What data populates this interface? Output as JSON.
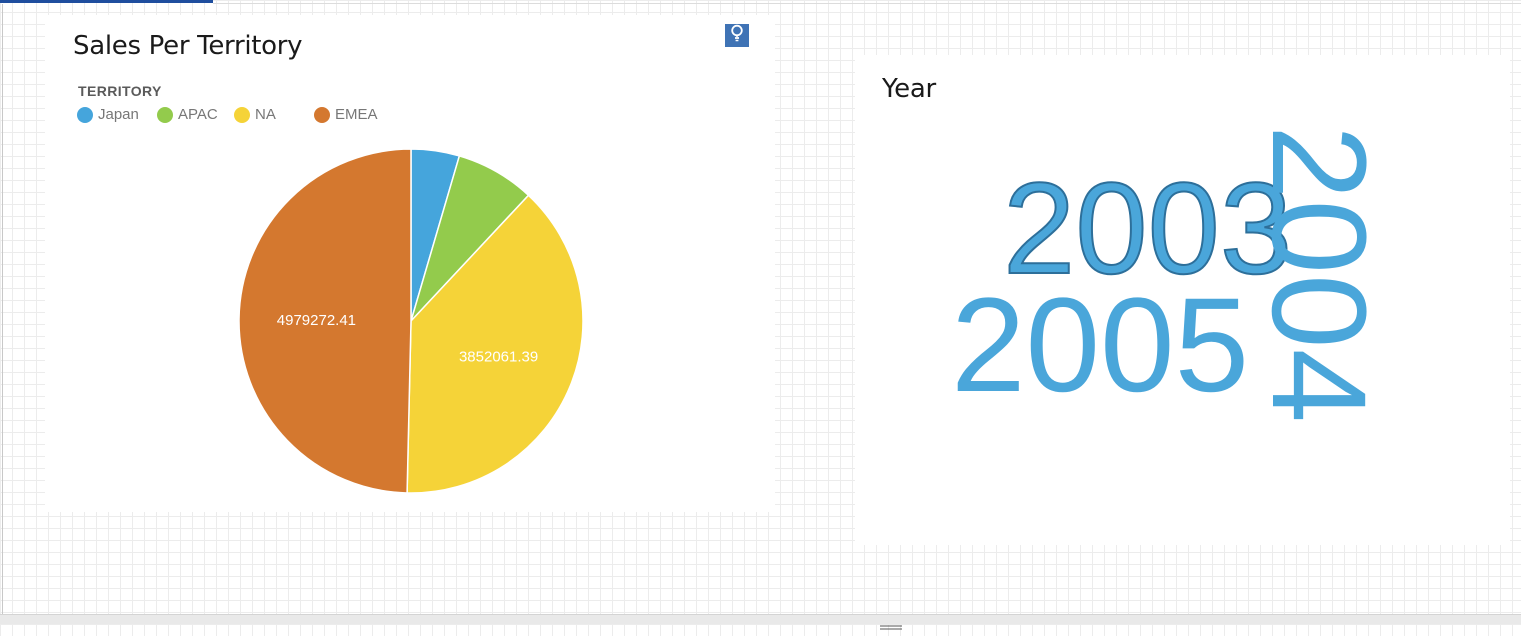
{
  "colors": {
    "accent": "#1f4e9e",
    "japan": "#45a5dc",
    "apac": "#93cb4c",
    "na": "#f5d338",
    "emea": "#d4782f",
    "wordcloud": "#4aa6da"
  },
  "sales_panel": {
    "title": "Sales Per Territory",
    "insight_icon": "lightbulb-icon",
    "legend_title": "TERRITORY",
    "legend": [
      {
        "label": "Japan",
        "color": "#45a5dc"
      },
      {
        "label": "APAC",
        "color": "#93cb4c"
      },
      {
        "label": "NA",
        "color": "#f5d338"
      },
      {
        "label": "EMEA",
        "color": "#d4782f"
      }
    ]
  },
  "chart_data": {
    "type": "pie",
    "title": "Sales Per Territory",
    "legend_title": "TERRITORY",
    "legend_position": "top-left",
    "categories": [
      "Japan",
      "APAC",
      "NA",
      "EMEA"
    ],
    "values": [
      455000,
      745000,
      3852061.39,
      4979272.41
    ],
    "data_labels": [
      "",
      "",
      "3852061.39",
      "4979272.41"
    ],
    "colors": [
      "#45a5dc",
      "#93cb4c",
      "#f5d338",
      "#d4782f"
    ]
  },
  "year_panel": {
    "title": "Year",
    "words": [
      {
        "text": "2003"
      },
      {
        "text": "2005"
      },
      {
        "text": "2004"
      }
    ]
  },
  "bottom_bar": {
    "handle_icon": "drag-handle-icon"
  }
}
